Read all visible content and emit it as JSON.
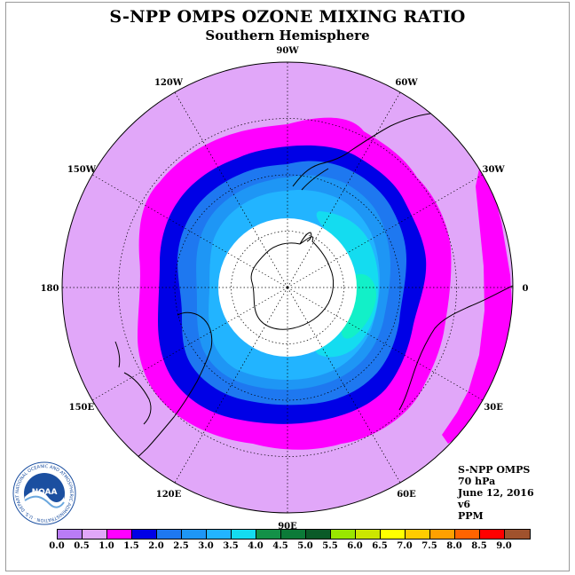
{
  "header": {
    "title": "S-NPP OMPS OZONE MIXING RATIO",
    "subtitle": "Southern Hemisphere"
  },
  "map": {
    "projection": "south-polar-stereographic",
    "longitude_labels": [
      {
        "text": "90W",
        "lon": -90
      },
      {
        "text": "60W",
        "lon": -60
      },
      {
        "text": "30W",
        "lon": -30
      },
      {
        "text": "0",
        "lon": 0
      },
      {
        "text": "30E",
        "lon": 30
      },
      {
        "text": "60E",
        "lon": 60
      },
      {
        "text": "90E",
        "lon": 90
      },
      {
        "text": "120E",
        "lon": 120
      },
      {
        "text": "150E",
        "lon": 150
      },
      {
        "text": "180",
        "lon": 180
      },
      {
        "text": "150W",
        "lon": -150
      },
      {
        "text": "120W",
        "lon": -120
      }
    ],
    "missing_data_region": "polar night cap (no data)",
    "fill_colors": {
      "background_disk": "#e1a7f9",
      "ring_1_0": "#ff00ff",
      "ring_1_5": "#0000e6",
      "ring_2_0": "#1e78f0",
      "ring_2_5": "#1e96f5",
      "ring_3_0": "#22b4ff",
      "ring_3_5": "#14dcf0",
      "ring_4_0": "#12f0c8"
    }
  },
  "info": {
    "product": "S-NPP OMPS",
    "level": "70 hPa",
    "date": "June 12, 2016",
    "version": "v6",
    "units": "PPM"
  },
  "colorbar": {
    "colors": [
      "#b97cf5",
      "#e1a7f9",
      "#ff00ff",
      "#0000e6",
      "#1e78f0",
      "#1e96f5",
      "#22b4ff",
      "#14dcf0",
      "#139148",
      "#0b7a38",
      "#0a5a28",
      "#99e600",
      "#cce600",
      "#ffff00",
      "#ffcc00",
      "#ffa000",
      "#ff6400",
      "#ff0000",
      "#a0522d"
    ],
    "ticks": [
      "0.0",
      "0.5",
      "1.0",
      "1.5",
      "2.0",
      "2.5",
      "3.0",
      "3.5",
      "4.0",
      "4.5",
      "5.0",
      "5.5",
      "6.0",
      "6.5",
      "7.0",
      "7.5",
      "8.0",
      "8.5",
      "9.0"
    ]
  },
  "logo": {
    "text": "NOAA",
    "ring_text": "NATIONAL OCEANIC AND ATMOSPHERIC ADMINISTRATION · U.S. DEPARTMENT OF COMMERCE"
  }
}
